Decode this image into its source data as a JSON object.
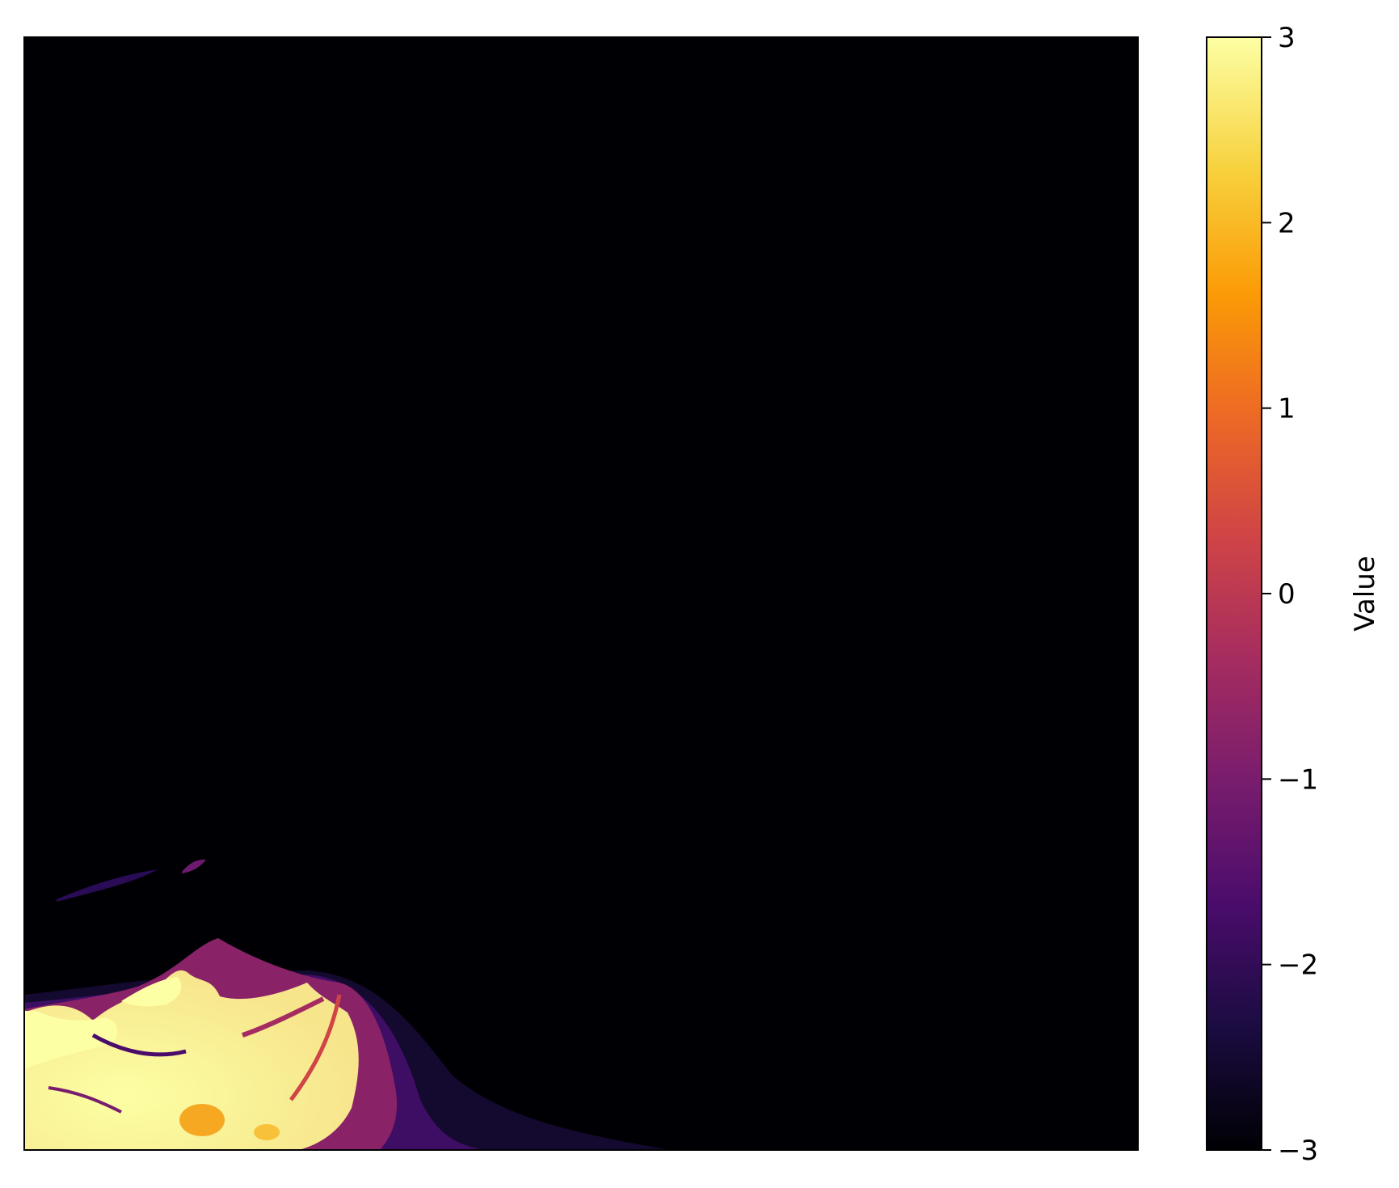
{
  "chart_data": {
    "type": "heatmap",
    "title": "",
    "xlabel": "",
    "ylabel": "",
    "x_ticks_visible": false,
    "y_ticks_visible": false,
    "colormap": "inferno",
    "colorbar": {
      "label": "Value",
      "vmin": -3,
      "vmax": 3,
      "ticks": [
        3,
        2,
        1,
        0,
        -1,
        -2,
        -3
      ],
      "tick_labels": [
        "3",
        "2",
        "1",
        "0",
        "−1",
        "−2",
        "−3"
      ],
      "location": "right"
    },
    "colors": {
      "stop_0": "#000004",
      "stop_1": "#1b0c41",
      "stop_2": "#4a0c6b",
      "stop_3": "#781c6d",
      "stop_4": "#a52c60",
      "stop_5": "#cf4446",
      "stop_6": "#ed6925",
      "stop_7": "#fb9b06",
      "stop_8": "#f7d13d",
      "stop_9": "#fcffa4"
    },
    "description_of_field": "Mostly minimum value (−3) everywhere; bright high-value region (up to 3) confined to the lower-left corner, with purple fringes"
  }
}
